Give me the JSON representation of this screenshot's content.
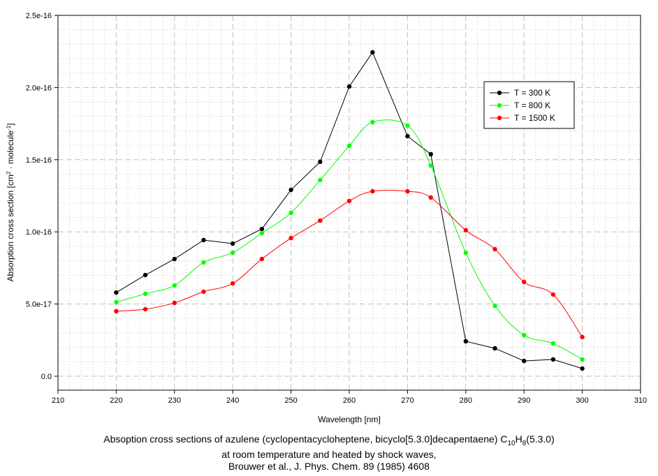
{
  "chart_data": {
    "type": "line",
    "xlabel": "Wavelength [nm]",
    "ylabel_parts": [
      "Absorption cross section [cm",
      "2",
      " · molecule",
      "-1",
      "]"
    ],
    "xlim": [
      210,
      310
    ],
    "ylim": [
      0,
      2.5e-16
    ],
    "xticks": [
      210,
      220,
      230,
      240,
      250,
      260,
      270,
      280,
      290,
      300,
      310
    ],
    "yticks": [
      0,
      5e-17,
      1e-16,
      1.5e-16,
      2e-16,
      2.5e-16
    ],
    "ytick_labels": [
      "0.0",
      "5.0e-17",
      "1.0e-16",
      "1.5e-16",
      "2.0e-16",
      "2.5e-16"
    ],
    "grid": true,
    "legend_position": "top-right",
    "x": [
      220,
      225,
      230,
      235,
      240,
      245,
      250,
      255,
      260,
      264,
      270,
      274,
      280,
      285,
      290,
      295,
      300
    ],
    "series": [
      {
        "name": "T = 300 K",
        "color": "#000000",
        "smooth": false,
        "values": [
          5.8e-17,
          7.01e-17,
          8.12e-17,
          9.43e-17,
          9.19e-17,
          1.02e-16,
          1.291e-16,
          1.485e-16,
          2.007e-16,
          2.244e-16,
          1.663e-16,
          1.538e-16,
          2.42e-17,
          1.93e-17,
          1.06e-17,
          1.16e-17,
          5.3e-18
        ]
      },
      {
        "name": "T = 800 K",
        "color": "#00ff00",
        "smooth": true,
        "values": [
          5.13e-17,
          5.71e-17,
          6.29e-17,
          7.88e-17,
          8.56e-17,
          9.91e-17,
          1.132e-16,
          1.359e-16,
          1.596e-16,
          1.76e-16,
          1.736e-16,
          1.46e-16,
          8.56e-17,
          4.88e-17,
          2.85e-17,
          2.27e-17,
          1.16e-17
        ]
      },
      {
        "name": "T = 1500 K",
        "color": "#ff0000",
        "smooth": true,
        "values": [
          4.5e-17,
          4.64e-17,
          5.08e-17,
          5.85e-17,
          6.43e-17,
          8.12e-17,
          9.57e-17,
          1.078e-16,
          1.214e-16,
          1.281e-16,
          1.281e-16,
          1.238e-16,
          1.011e-16,
          8.8e-17,
          6.53e-17,
          5.66e-17,
          2.71e-17
        ]
      }
    ]
  },
  "caption": {
    "line1_main": "Absoption cross sections of azulene (cyclopentacycloheptene, bicyclo[5.3.0]decapentaene) C",
    "line1_sub1": "10",
    "line1_mid": "H",
    "line1_sub2": "8",
    "line1_end": "(5.3.0)",
    "line2": "at room temperature and heated by shock waves,",
    "line3": "Brouwer et al., J. Phys. Chem. 89 (1985) 4608"
  }
}
